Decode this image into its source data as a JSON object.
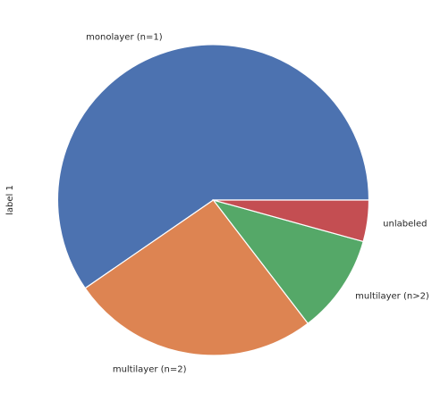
{
  "chart_data": {
    "type": "pie",
    "ylabel": "label 1",
    "slices": [
      {
        "label": "monolayer (n=1)",
        "value": 0.596,
        "color": "#4c72b0"
      },
      {
        "label": "multilayer (n=2)",
        "value": 0.258,
        "color": "#dd8452"
      },
      {
        "label": "multilayer (n>2)",
        "value": 0.103,
        "color": "#55a868"
      },
      {
        "label": "unlabeled",
        "value": 0.043,
        "color": "#c44e52"
      }
    ],
    "legend": false,
    "grid": false
  }
}
